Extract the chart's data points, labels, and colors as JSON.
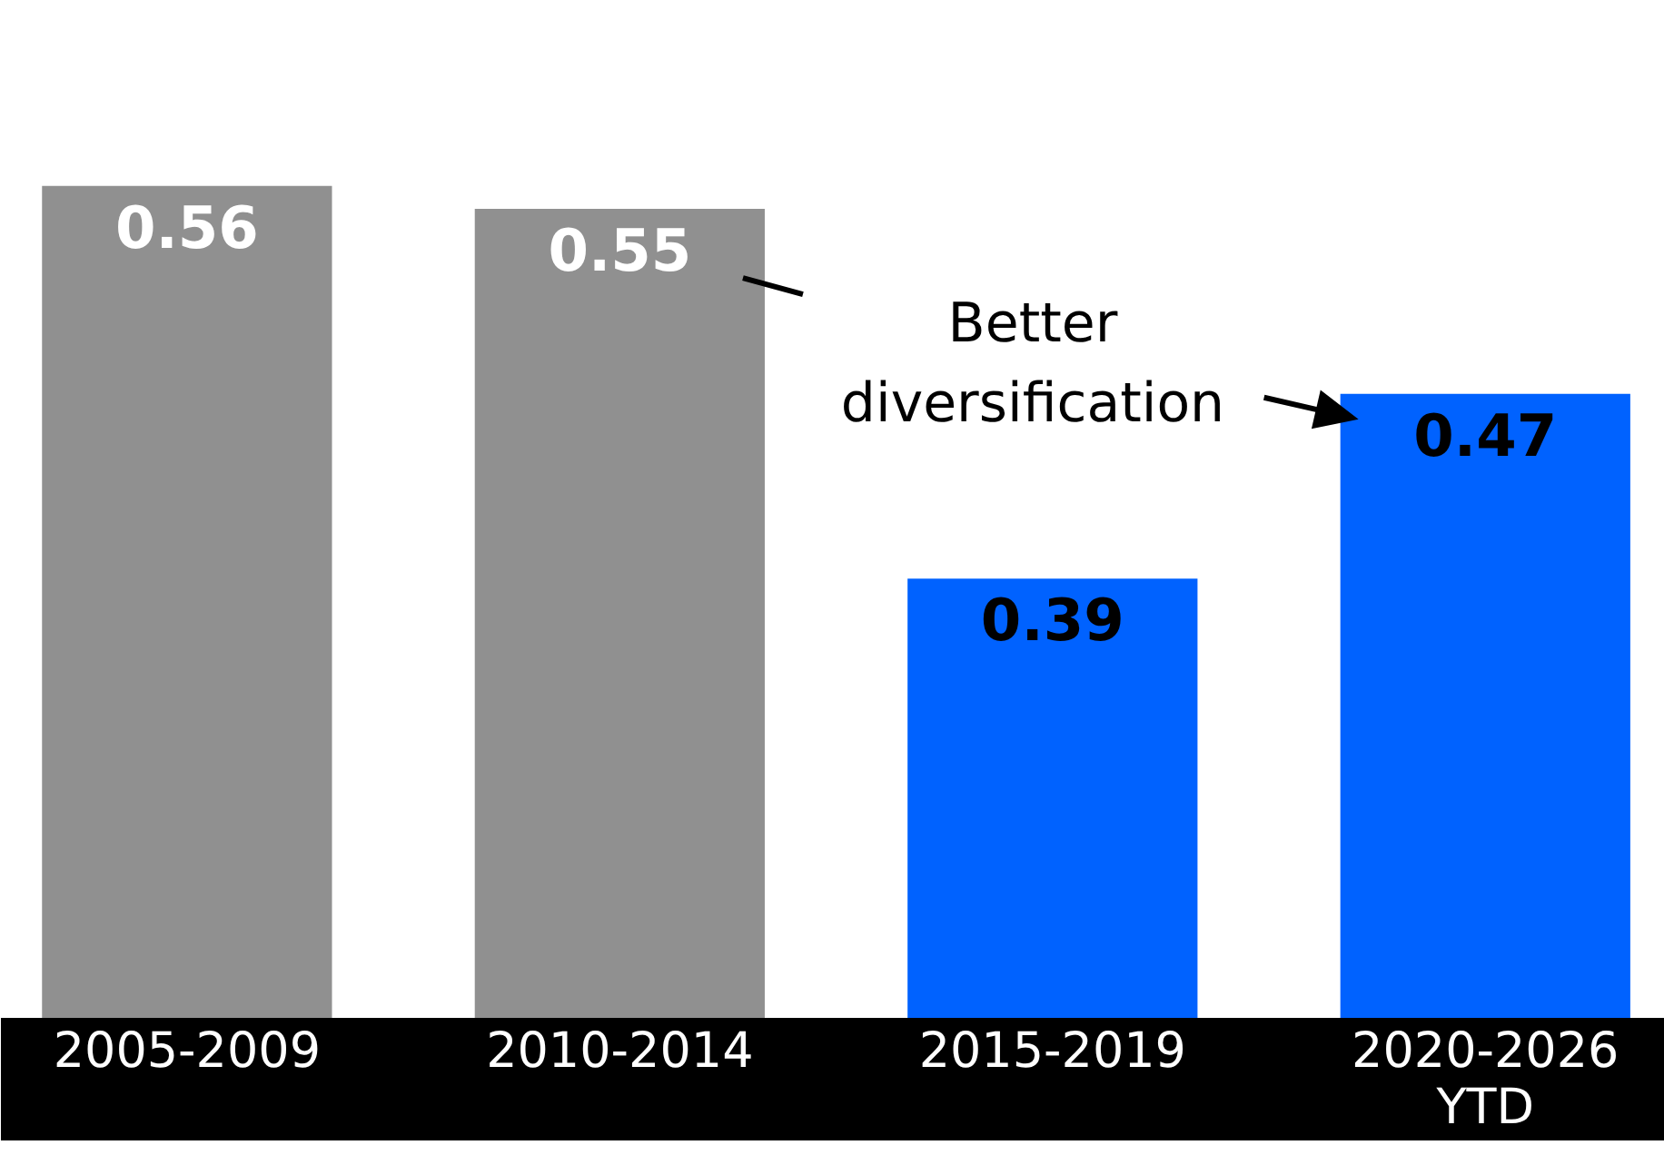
{
  "chart_data": {
    "type": "bar",
    "categories": [
      "2005-2009",
      "2010-2014",
      "2015-2019",
      "2020-2026 YTD"
    ],
    "values": [
      0.56,
      0.55,
      0.39,
      0.47
    ],
    "colors": [
      "#909090",
      "#909090",
      "#0062ff",
      "#0062ff"
    ],
    "ylim": [
      0.2,
      0.64
    ],
    "data_labels": true,
    "tick_labels": "x",
    "annotations": [
      "Better diversification"
    ]
  }
}
